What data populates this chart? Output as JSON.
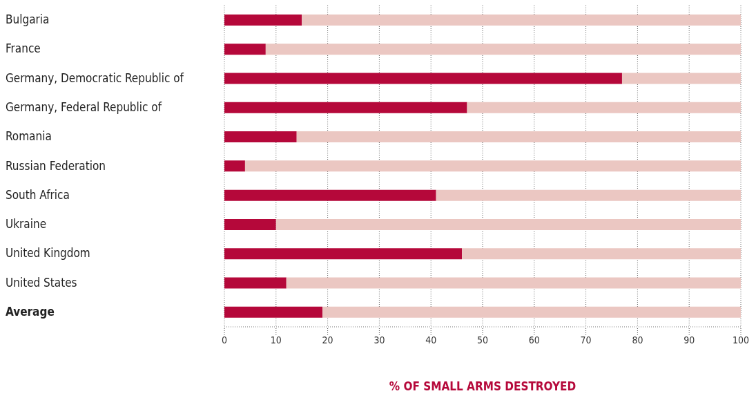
{
  "chart_data": {
    "type": "bar",
    "orientation": "horizontal",
    "stacked": true,
    "xlabel": "% OF SMALL ARMS DESTROYED",
    "categories": [
      "Bulgaria",
      "France",
      "Germany, Democratic Republic of",
      "Germany, Federal Republic of",
      "Romania",
      "Russian Federation",
      "South Africa",
      "Ukraine",
      "United Kingdom",
      "United States",
      "Average"
    ],
    "series": [
      {
        "color": "#b5083a",
        "values": [
          15,
          8,
          77,
          47,
          14,
          4,
          41,
          10,
          46,
          12,
          19
        ]
      },
      {
        "color": "#ebc7c2",
        "values": [
          85,
          92,
          23,
          53,
          86,
          96,
          59,
          90,
          54,
          88,
          81
        ]
      }
    ],
    "xlim": [
      0,
      100
    ],
    "xticks": [
      0,
      10,
      20,
      30,
      40,
      50,
      60,
      70,
      80,
      90,
      100
    ],
    "grid": "x",
    "legend": false
  }
}
